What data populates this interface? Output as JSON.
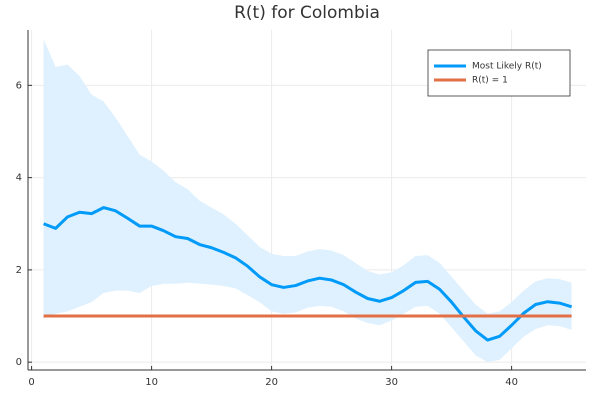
{
  "chart_data": {
    "type": "line",
    "title": "R(t) for Colombia",
    "x": [
      1,
      2,
      3,
      4,
      5,
      6,
      7,
      8,
      9,
      10,
      11,
      12,
      13,
      14,
      15,
      16,
      17,
      18,
      19,
      20,
      21,
      22,
      23,
      24,
      25,
      26,
      27,
      28,
      29,
      30,
      31,
      32,
      33,
      34,
      35,
      36,
      37,
      38,
      39,
      40,
      41,
      42,
      43,
      44,
      45
    ],
    "series": [
      {
        "name": "Most Likely R(t)",
        "color": "#009af9",
        "band_color": "#dff1fe",
        "values": [
          3.0,
          2.9,
          3.15,
          3.25,
          3.22,
          3.35,
          3.28,
          3.12,
          2.95,
          2.95,
          2.85,
          2.72,
          2.68,
          2.55,
          2.48,
          2.38,
          2.26,
          2.08,
          1.85,
          1.68,
          1.62,
          1.66,
          1.76,
          1.82,
          1.78,
          1.68,
          1.52,
          1.38,
          1.32,
          1.4,
          1.55,
          1.73,
          1.75,
          1.58,
          1.3,
          0.98,
          0.68,
          0.48,
          0.56,
          0.8,
          1.06,
          1.25,
          1.31,
          1.28,
          1.2
        ],
        "upper": [
          7.0,
          6.4,
          6.45,
          6.2,
          5.8,
          5.65,
          5.3,
          4.9,
          4.5,
          4.35,
          4.15,
          3.9,
          3.75,
          3.5,
          3.35,
          3.2,
          3.0,
          2.75,
          2.5,
          2.35,
          2.3,
          2.3,
          2.4,
          2.45,
          2.42,
          2.32,
          2.15,
          1.98,
          1.9,
          1.95,
          2.1,
          2.3,
          2.32,
          2.15,
          1.85,
          1.55,
          1.25,
          1.05,
          1.1,
          1.3,
          1.55,
          1.75,
          1.82,
          1.8,
          1.72
        ],
        "lower": [
          0.95,
          1.05,
          1.1,
          1.2,
          1.3,
          1.5,
          1.55,
          1.55,
          1.5,
          1.65,
          1.7,
          1.7,
          1.72,
          1.7,
          1.68,
          1.65,
          1.6,
          1.45,
          1.3,
          1.1,
          1.05,
          1.08,
          1.18,
          1.22,
          1.2,
          1.1,
          0.95,
          0.85,
          0.8,
          0.9,
          1.05,
          1.2,
          1.22,
          1.05,
          0.75,
          0.45,
          0.15,
          0.0,
          0.05,
          0.3,
          0.55,
          0.72,
          0.8,
          0.78,
          0.7
        ]
      },
      {
        "name": "R(t) = 1",
        "color": "#e26f46",
        "values": [
          1,
          1,
          1,
          1,
          1,
          1,
          1,
          1,
          1,
          1,
          1,
          1,
          1,
          1,
          1,
          1,
          1,
          1,
          1,
          1,
          1,
          1,
          1,
          1,
          1,
          1,
          1,
          1,
          1,
          1,
          1,
          1,
          1,
          1,
          1,
          1,
          1,
          1,
          1,
          1,
          1,
          1,
          1,
          1,
          1
        ]
      }
    ],
    "xlim": [
      -0.3,
      46.2
    ],
    "ylim": [
      -0.17,
      7.2
    ],
    "xticks": [
      0,
      10,
      20,
      30,
      40
    ],
    "yticks": [
      0,
      2,
      4,
      6
    ],
    "grid": true,
    "legend": "top-right"
  }
}
